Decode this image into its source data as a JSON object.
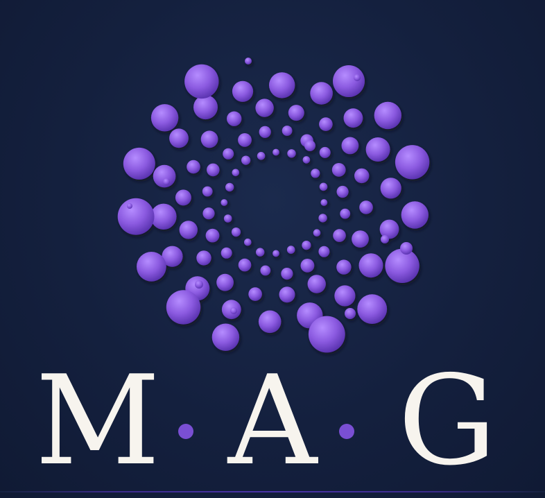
{
  "logo": {
    "letters": [
      "M",
      "A",
      "G"
    ]
  },
  "colors": {
    "background": "#15213f",
    "dot_fill": "#8b5ae0",
    "dot_highlight": "#b58cff",
    "dot_shadow": "#5a33b0",
    "separator_dot": "#7a4fd3",
    "letter_fill": "#f7f4ee"
  }
}
